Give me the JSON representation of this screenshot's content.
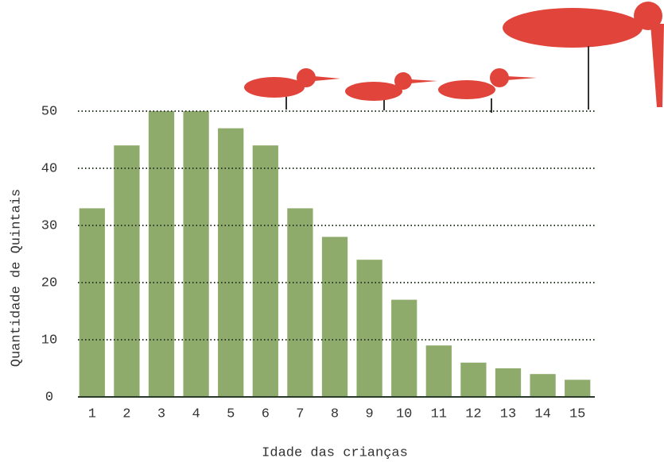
{
  "chart_data": {
    "type": "bar",
    "categories": [
      "1",
      "2",
      "3",
      "4",
      "5",
      "6",
      "7",
      "8",
      "9",
      "10",
      "11",
      "12",
      "13",
      "14",
      "15"
    ],
    "values": [
      33,
      44,
      50,
      50,
      47,
      44,
      33,
      28,
      24,
      17,
      9,
      6,
      5,
      4,
      3
    ],
    "color": "#8fab6c",
    "x_label": "Idade das crianças",
    "y_label": "Quantidade de Quintais",
    "ylim": [
      0,
      50
    ],
    "yticks": [
      0,
      10,
      20,
      30,
      40,
      50
    ],
    "grid": true
  }
}
